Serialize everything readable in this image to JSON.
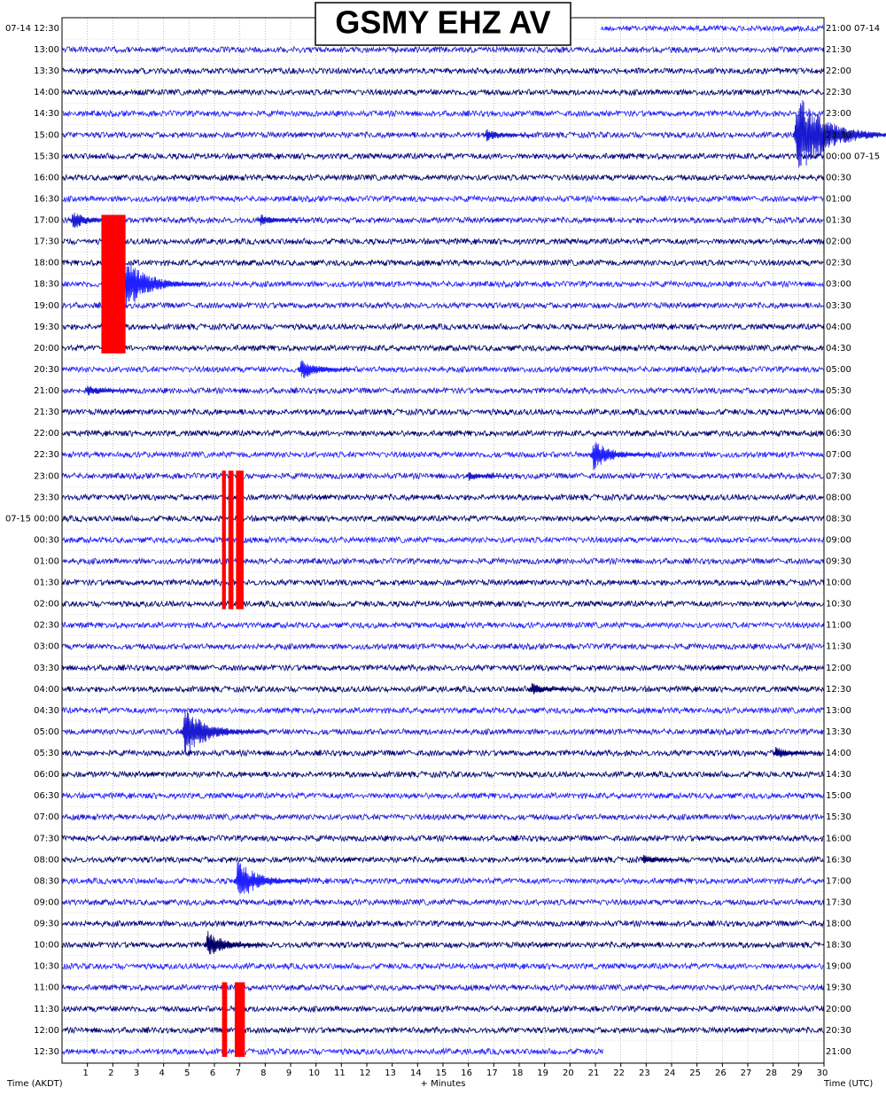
{
  "chart_data": {
    "type": "helicorder",
    "title": "GSMY EHZ AV",
    "xlabel": "+ Minutes",
    "left_axis_label": "Time (AKDT)",
    "right_axis_label": "Time (UTC)",
    "xlim": [
      0,
      30
    ],
    "xticks": [
      1,
      2,
      3,
      4,
      5,
      6,
      7,
      8,
      9,
      10,
      11,
      12,
      13,
      14,
      15,
      16,
      17,
      18,
      19,
      20,
      21,
      22,
      23,
      24,
      25,
      26,
      27,
      28,
      29,
      30
    ],
    "grid": true,
    "left_labels": [
      "07-14 12:30",
      "13:00",
      "13:30",
      "14:00",
      "14:30",
      "15:00",
      "15:30",
      "16:00",
      "16:30",
      "17:00",
      "17:30",
      "18:00",
      "18:30",
      "19:00",
      "19:30",
      "20:00",
      "20:30",
      "21:00",
      "21:30",
      "22:00",
      "22:30",
      "23:00",
      "23:30",
      "07-15 00:00",
      "00:30",
      "01:00",
      "01:30",
      "02:00",
      "02:30",
      "03:00",
      "03:30",
      "04:00",
      "04:30",
      "05:00",
      "05:30",
      "06:00",
      "06:30",
      "07:00",
      "07:30",
      "08:00",
      "08:30",
      "09:00",
      "09:30",
      "10:00",
      "10:30",
      "11:00",
      "11:30",
      "12:00",
      "12:30"
    ],
    "right_labels": [
      "21:00 07-14",
      "21:30",
      "22:00",
      "22:30",
      "23:00",
      "23:30",
      "00:00 07-15",
      "00:30",
      "01:00",
      "01:30",
      "02:00",
      "02:30",
      "03:00",
      "03:30",
      "04:00",
      "04:30",
      "05:00",
      "05:30",
      "06:00",
      "06:30",
      "07:00",
      "07:30",
      "08:00",
      "08:30",
      "09:00",
      "09:30",
      "10:00",
      "10:30",
      "11:00",
      "11:30",
      "12:00",
      "12:30",
      "13:00",
      "13:30",
      "14:00",
      "14:30",
      "15:00",
      "15:30",
      "16:00",
      "16:30",
      "17:00",
      "17:30",
      "18:00",
      "18:30",
      "19:00",
      "19:30",
      "20:00",
      "20:30",
      "21:00"
    ],
    "trace_colors": [
      "#1f1fff",
      "#1a1ad0",
      "#000080",
      "#00006a"
    ],
    "clip_color": "#ff0000",
    "first_trace_start": 21.2,
    "last_trace_end": 21.3,
    "events": [
      {
        "row": 5,
        "minute": 28.9,
        "amplitude": 2.6
      },
      {
        "row": 5,
        "minute": 16.7,
        "amplitude": 0.4
      },
      {
        "row": 9,
        "minute": 0.4,
        "amplitude": 0.6
      },
      {
        "row": 9,
        "minute": 7.8,
        "amplitude": 0.4
      },
      {
        "row": 12,
        "minute": 2.5,
        "amplitude": 1.6
      },
      {
        "row": 16,
        "minute": 9.4,
        "amplitude": 0.7
      },
      {
        "row": 17,
        "minute": 1.0,
        "amplitude": 0.4
      },
      {
        "row": 20,
        "minute": 20.9,
        "amplitude": 1.0
      },
      {
        "row": 21,
        "minute": 16.0,
        "amplitude": 0.3
      },
      {
        "row": 31,
        "minute": 18.5,
        "amplitude": 0.4
      },
      {
        "row": 33,
        "minute": 4.8,
        "amplitude": 1.6
      },
      {
        "row": 34,
        "minute": 28.1,
        "amplitude": 0.4
      },
      {
        "row": 39,
        "minute": 22.9,
        "amplitude": 0.3
      },
      {
        "row": 40,
        "minute": 6.9,
        "amplitude": 1.3
      },
      {
        "row": 43,
        "minute": 5.7,
        "amplitude": 0.9
      }
    ],
    "clips": [
      {
        "row_start": 9,
        "row_end": 15,
        "minute_start": 1.55,
        "minute_end": 2.5
      },
      {
        "row_start": 21,
        "row_end": 27,
        "minute_start": 6.3,
        "minute_end": 6.45
      },
      {
        "row_start": 21,
        "row_end": 27,
        "minute_start": 6.55,
        "minute_end": 6.75
      },
      {
        "row_start": 21,
        "row_end": 27,
        "minute_start": 6.85,
        "minute_end": 7.15
      },
      {
        "row_start": 45,
        "row_end": 48,
        "minute_start": 6.3,
        "minute_end": 6.5
      },
      {
        "row_start": 45,
        "row_end": 48,
        "minute_start": 6.8,
        "minute_end": 7.2
      }
    ]
  }
}
